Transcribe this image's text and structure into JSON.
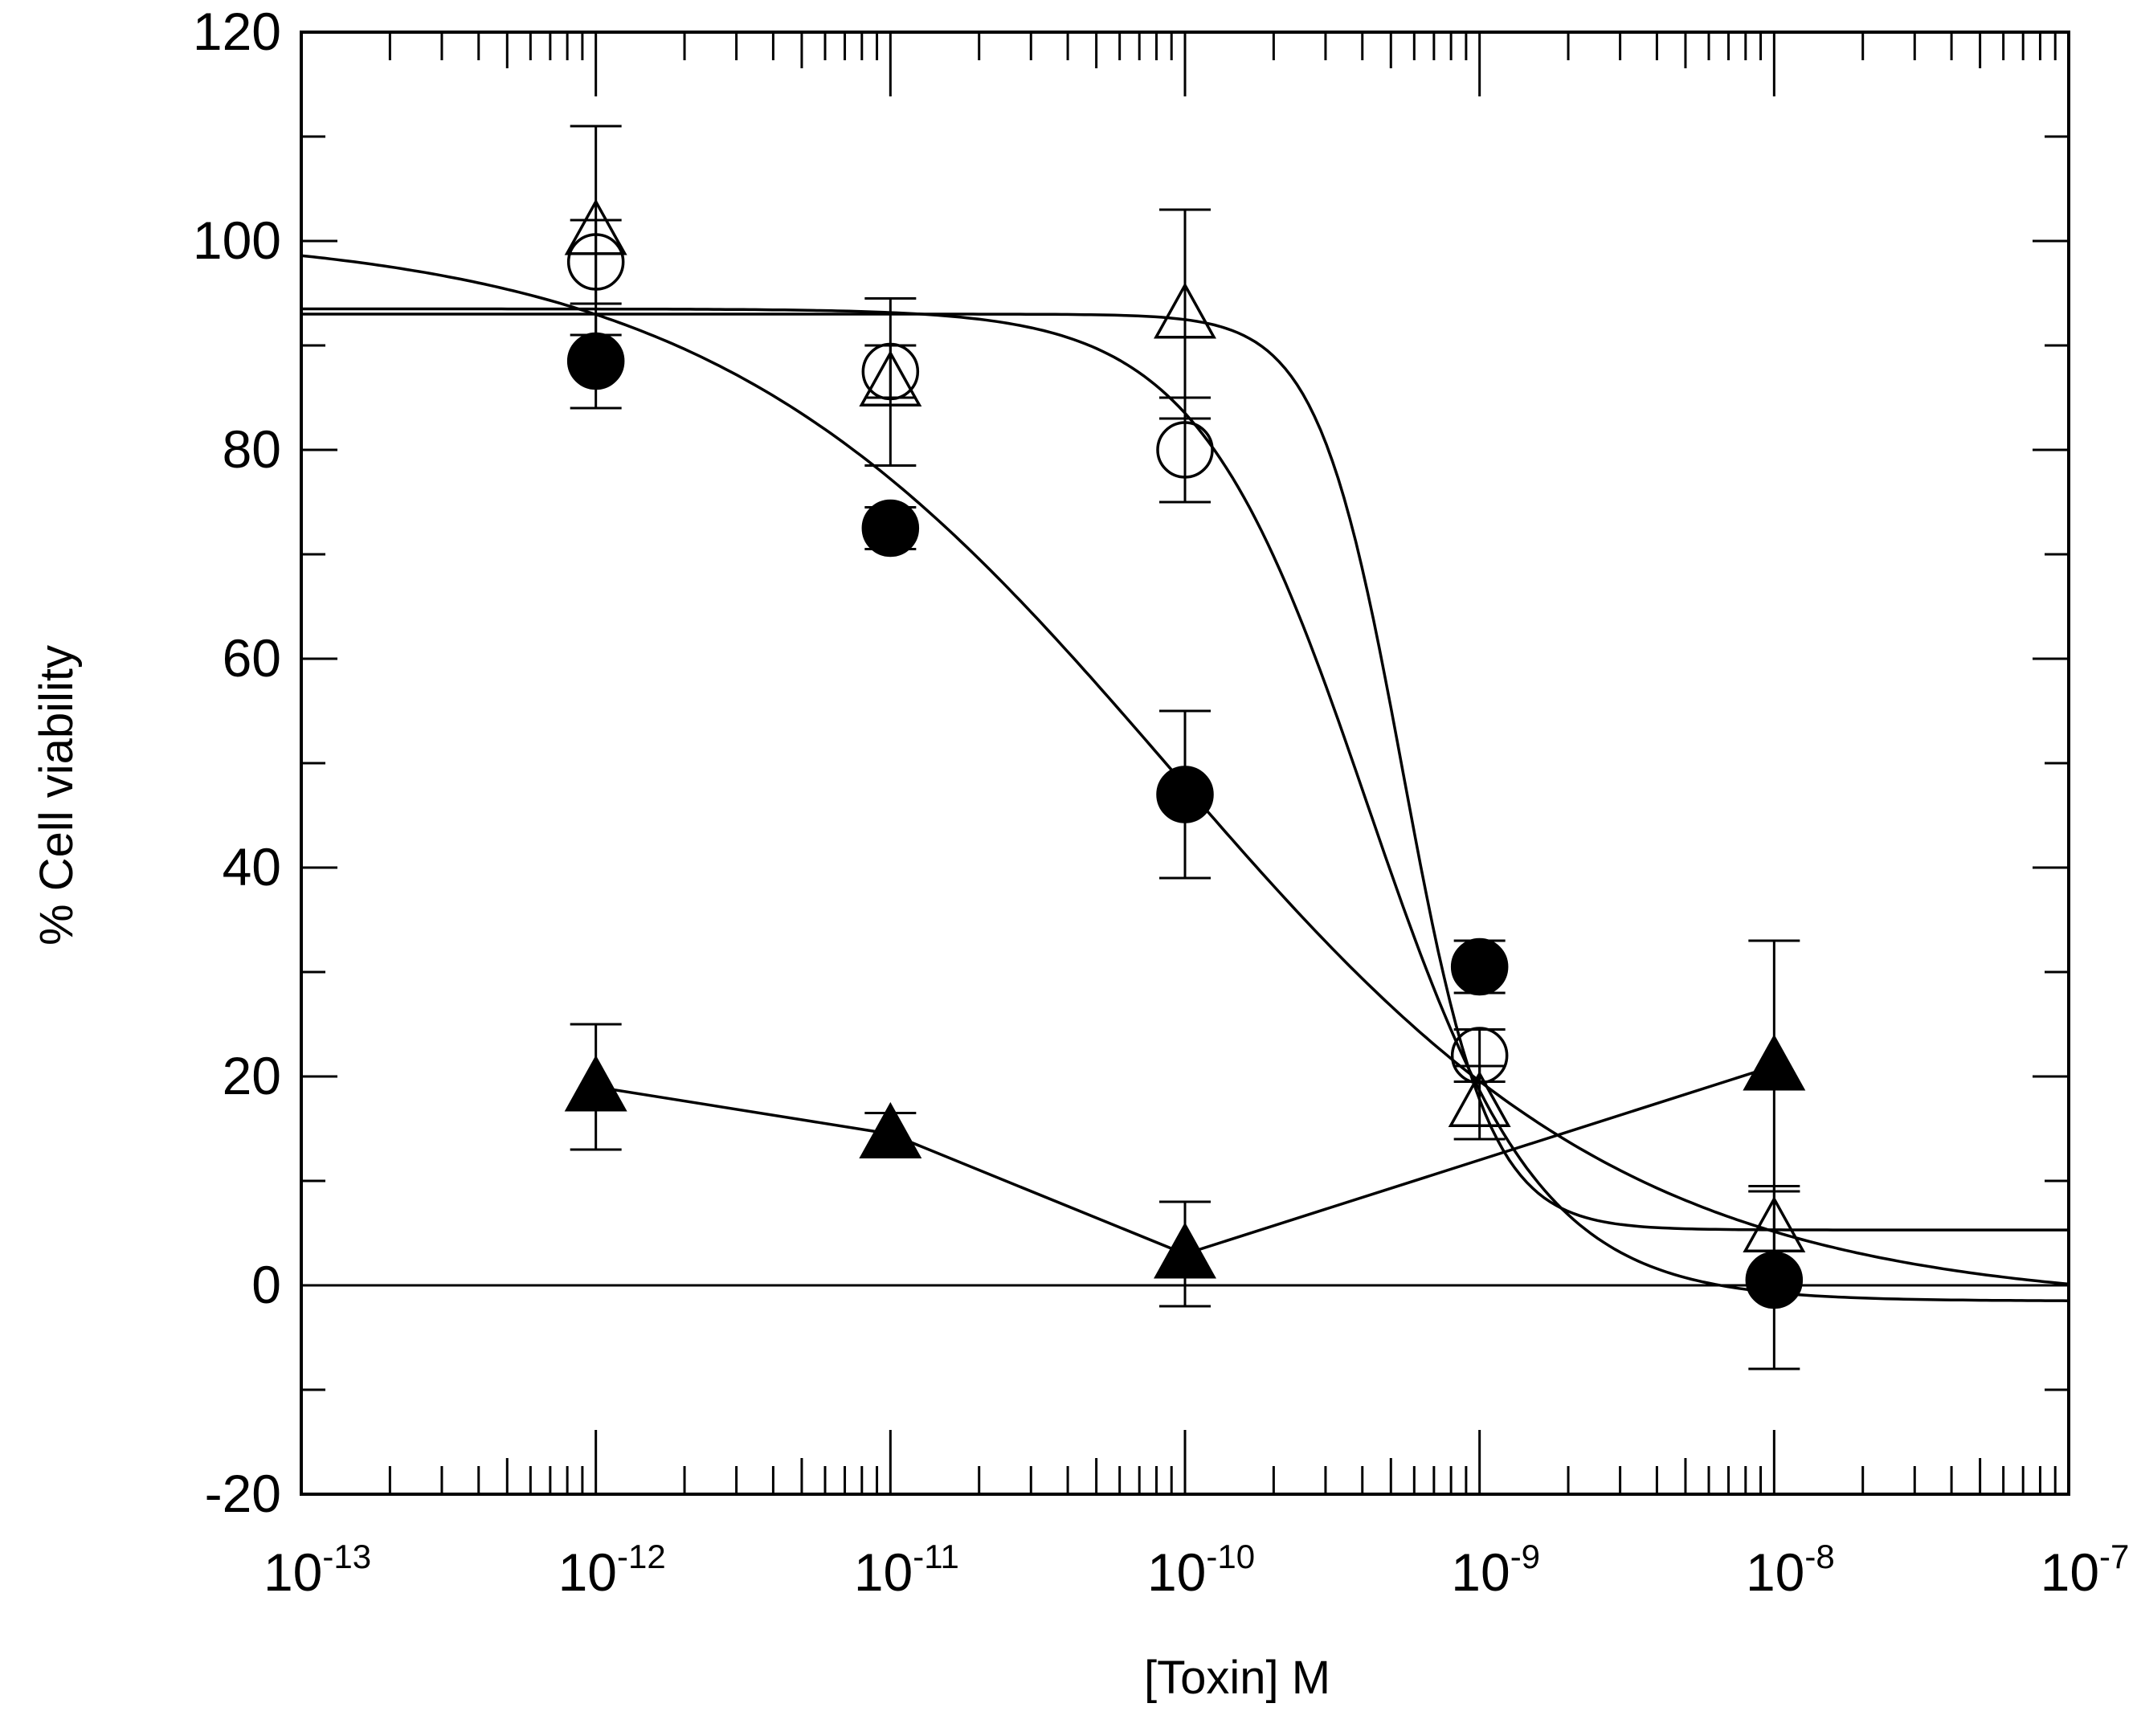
{
  "chart_data": {
    "type": "scatter",
    "title": "",
    "xlabel": "[Toxin] M",
    "ylabel": "% Cell viability",
    "xscale": "log",
    "xlim_exponent": [
      -13,
      -7
    ],
    "ylim": [
      -20,
      120
    ],
    "x_tick_labels": [
      {
        "base": "10",
        "exp": "-13"
      },
      {
        "base": "10",
        "exp": "-12"
      },
      {
        "base": "10",
        "exp": "-11"
      },
      {
        "base": "10",
        "exp": "-10"
      },
      {
        "base": "10",
        "exp": "-9"
      },
      {
        "base": "10",
        "exp": "-8"
      },
      {
        "base": "10",
        "exp": "-7"
      }
    ],
    "y_ticks": [
      -20,
      0,
      20,
      40,
      60,
      80,
      100,
      120
    ],
    "y_tick_labels": [
      "-20",
      "0",
      "20",
      "40",
      "60",
      "80",
      "100",
      "120"
    ],
    "zero_line": 0,
    "series": [
      {
        "name": "filled-circle",
        "marker": "circle",
        "filled": true,
        "x": [
          1e-12,
          1e-11,
          1e-10,
          1e-09,
          1e-08
        ],
        "y": [
          88.5,
          72.5,
          47,
          30.5,
          0.5
        ],
        "err": [
          4.5,
          2,
          8,
          2.5,
          8.5
        ],
        "fit": {
          "kind": "logistic",
          "top": 101,
          "bottom": -2,
          "log_ec50": -10.05,
          "hill": 0.55
        }
      },
      {
        "name": "open-circle",
        "marker": "circle",
        "filled": false,
        "x": [
          1e-12,
          1e-11,
          1e-10,
          1e-09
        ],
        "y": [
          98,
          87.5,
          80,
          22
        ],
        "err": [
          4,
          2.5,
          5,
          2.5
        ],
        "fit": {
          "kind": "logistic",
          "top": 93.5,
          "bottom": -1.5,
          "log_ec50": -9.38,
          "hill": 1.5
        }
      },
      {
        "name": "open-triangle",
        "marker": "triangle",
        "filled": false,
        "x": [
          1e-12,
          1e-11,
          1e-10,
          1e-09,
          1e-08
        ],
        "y": [
          101,
          86.5,
          93,
          17.5,
          5.5
        ],
        "err": [
          10,
          8,
          10,
          3.5,
          4
        ],
        "fit": {
          "kind": "logistic",
          "top": 93,
          "bottom": 5.3,
          "log_ec50": -9.26,
          "hill": 3
        }
      },
      {
        "name": "filled-triangle",
        "marker": "triangle",
        "filled": true,
        "x": [
          1e-12,
          1e-11,
          1e-10,
          1e-08
        ],
        "y": [
          19,
          14.5,
          3,
          21
        ],
        "err": [
          6,
          2,
          5,
          12
        ],
        "fit": {
          "kind": "connect"
        }
      }
    ]
  }
}
